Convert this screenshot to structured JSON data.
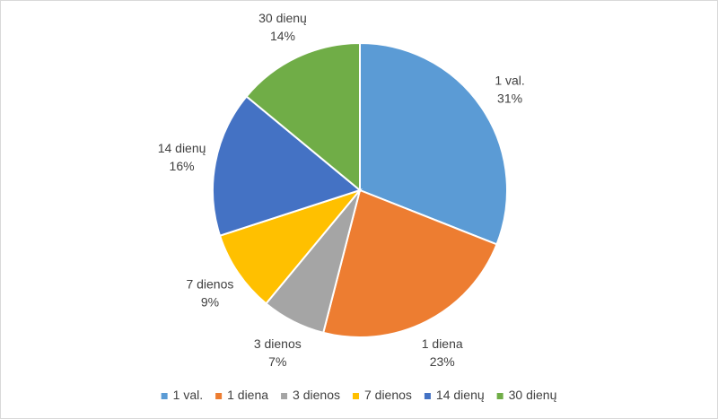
{
  "chart_data": {
    "type": "pie",
    "categories": [
      "1 val.",
      "1 diena",
      "3 dienos",
      "7 dienos",
      "14 dienų",
      "30 dienų"
    ],
    "values": [
      31,
      23,
      7,
      9,
      16,
      14
    ],
    "value_labels": [
      "31%",
      "23%",
      "7%",
      "9%",
      "16%",
      "14%"
    ],
    "colors": [
      "#5b9bd5",
      "#ed7d31",
      "#a5a5a5",
      "#ffc000",
      "#4472c4",
      "#70ad47"
    ],
    "legend_position": "bottom",
    "start_angle": "12 o'clock",
    "direction": "clockwise"
  }
}
